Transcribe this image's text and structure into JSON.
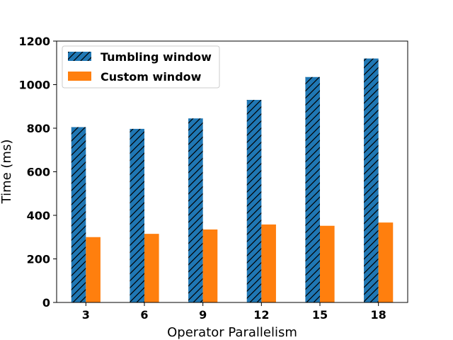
{
  "chart_data": {
    "type": "bar",
    "categories": [
      "3",
      "6",
      "9",
      "12",
      "15",
      "18"
    ],
    "series": [
      {
        "name": "Tumbling window",
        "values": [
          805,
          797,
          845,
          930,
          1035,
          1120
        ],
        "color": "#1f77b4",
        "pattern": "hatch"
      },
      {
        "name": "Custom window",
        "values": [
          300,
          315,
          335,
          358,
          352,
          367
        ],
        "color": "#ff7f0e",
        "pattern": "solid"
      }
    ],
    "xlabel": "Operator Parallelism",
    "ylabel": "Time (ms)",
    "ylim": [
      0,
      1200
    ],
    "yticks": [
      0,
      200,
      400,
      600,
      800,
      1000,
      1200
    ],
    "grid": false,
    "legend": "top-left"
  }
}
